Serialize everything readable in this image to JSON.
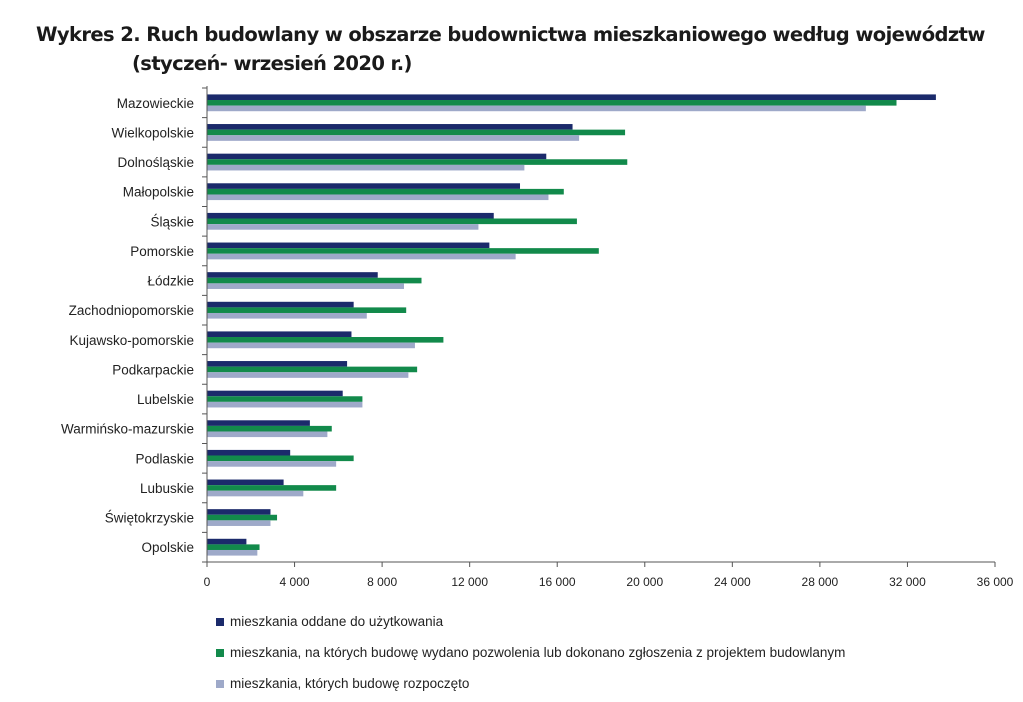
{
  "title": {
    "line1": "Wykres 2. Ruch budowlany w obszarze budownictwa mieszkaniowego według województw",
    "line2": "(styczeń- wrzesień 2020 r.)"
  },
  "colors": {
    "oddane": "#1b2a6b",
    "pozwolenia": "#128a4b",
    "rozpoczete": "#9ea9c9",
    "axis": "#555555"
  },
  "chart_data": {
    "type": "bar",
    "orientation": "horizontal",
    "title": "Wykres 2. Ruch budowlany w obszarze budownictwa mieszkaniowego według województw (styczeń- wrzesień 2020 r.)",
    "categories": [
      "Mazowieckie",
      "Wielkopolskie",
      "Dolnośląskie",
      "Małopolskie",
      "Śląskie",
      "Pomorskie",
      "Łódzkie",
      "Zachodniopomorskie",
      "Kujawsko-pomorskie",
      "Podkarpackie",
      "Lubelskie",
      "Warmińsko-mazurskie",
      "Podlaskie",
      "Lubuskie",
      "Świętokrzyskie",
      "Opolskie"
    ],
    "series": [
      {
        "name": "mieszkania oddane do użytkowania",
        "color_key": "oddane",
        "values": [
          33300,
          16700,
          15500,
          14300,
          13100,
          12900,
          7800,
          6700,
          6600,
          6400,
          6200,
          4700,
          3800,
          3500,
          2900,
          1800
        ]
      },
      {
        "name": "mieszkania, na których budowę wydano pozwolenia lub dokonano zgłoszenia z projektem budowlanym",
        "color_key": "pozwolenia",
        "values": [
          31500,
          19100,
          19200,
          16300,
          16900,
          17900,
          9800,
          9100,
          10800,
          9600,
          7100,
          5700,
          6700,
          5900,
          3200,
          2400
        ]
      },
      {
        "name": "mieszkania, których budowę rozpoczęto",
        "color_key": "rozpoczete",
        "values": [
          30100,
          17000,
          14500,
          15600,
          12400,
          14100,
          9000,
          7300,
          9500,
          9200,
          7100,
          5500,
          5900,
          4400,
          2900,
          2300
        ]
      }
    ],
    "xlim": [
      0,
      36000
    ],
    "xticks": [
      0,
      4000,
      8000,
      12000,
      16000,
      20000,
      24000,
      28000,
      32000,
      36000
    ],
    "xtick_labels": [
      "0",
      "4 000",
      "8 000",
      "12 000",
      "16 000",
      "20 000",
      "24 000",
      "28 000",
      "32 000",
      "36 000"
    ],
    "xlabel": "",
    "ylabel": "",
    "legend_position": "bottom"
  }
}
